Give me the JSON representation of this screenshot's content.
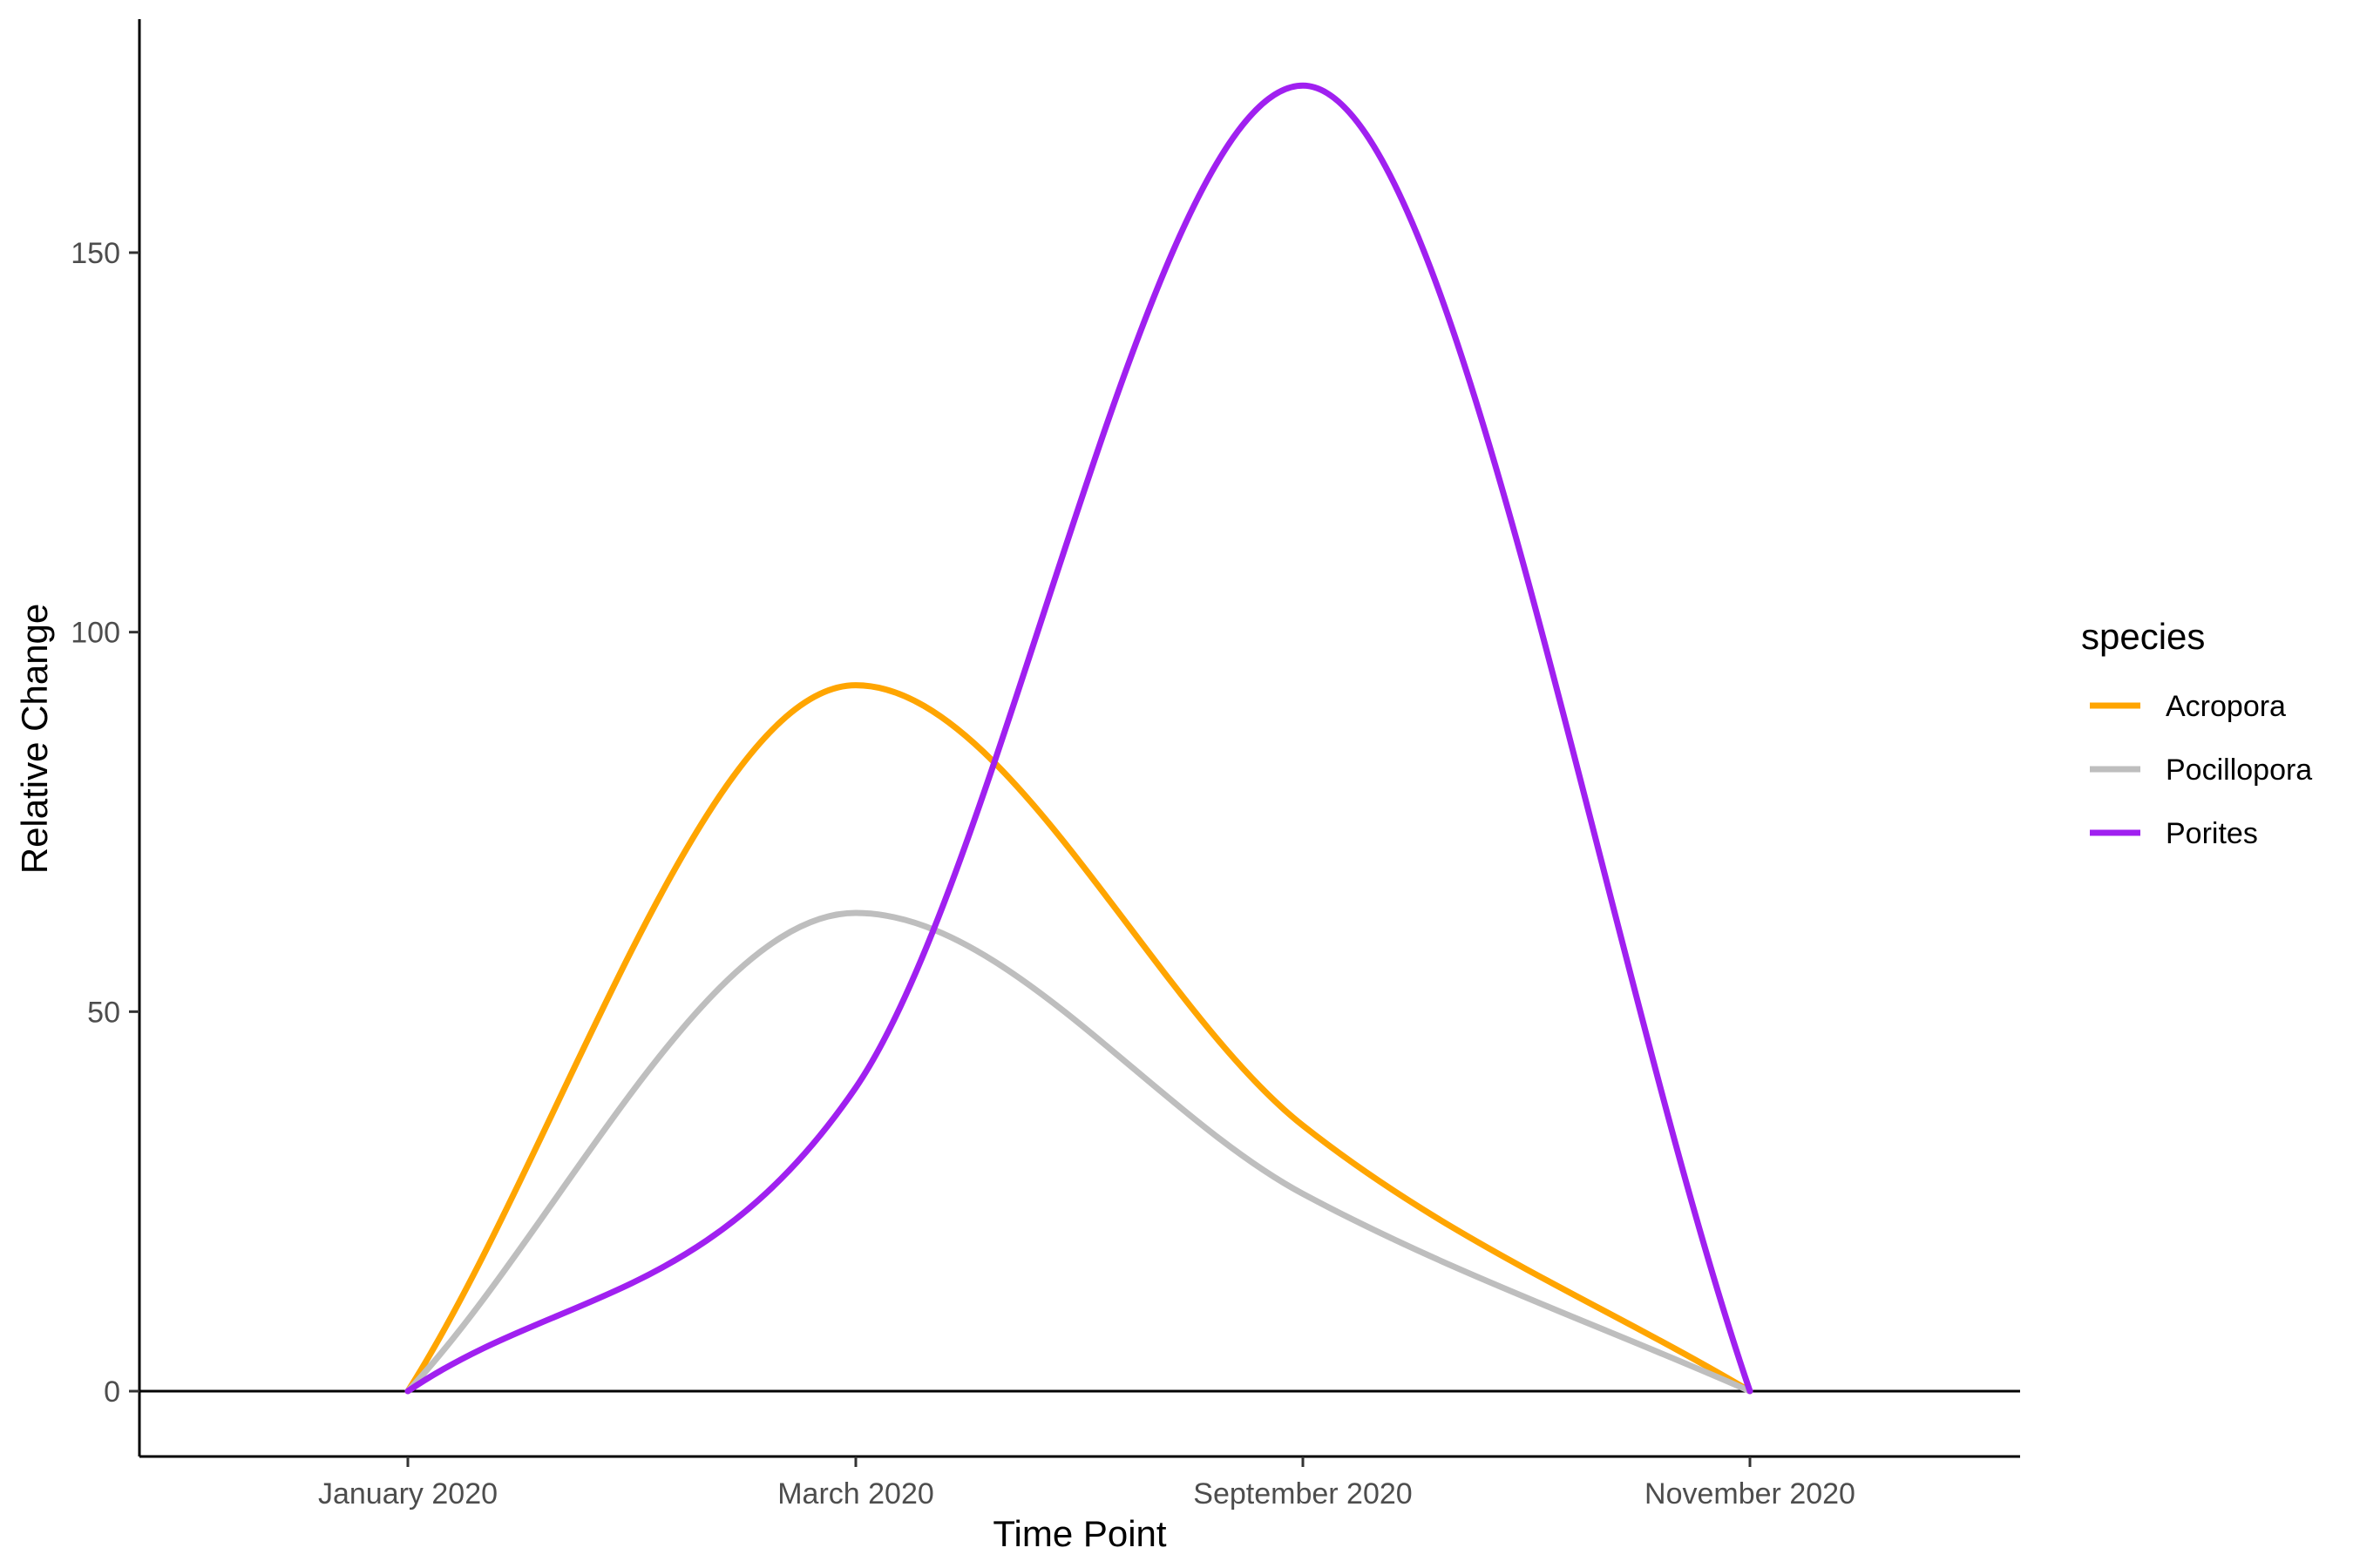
{
  "chart_data": {
    "type": "line",
    "title": "",
    "xlabel": "Time Point",
    "ylabel": "Relative Change",
    "categories": [
      "January 2020",
      "March 2020",
      "September 2020",
      "November 2020"
    ],
    "y_ticks": [
      0,
      50,
      100,
      150
    ],
    "ylim": [
      -9,
      180
    ],
    "grid": false,
    "reference_line_y": 0,
    "legend": {
      "title": "species",
      "position": "right"
    },
    "series": [
      {
        "name": "Acropora",
        "color": "#FFA500",
        "values": [
          0,
          93,
          35,
          0
        ]
      },
      {
        "name": "Pocillopora",
        "color": "#BEBEBE",
        "values": [
          0,
          63,
          26,
          0
        ]
      },
      {
        "name": "Porites",
        "color": "#A020F0",
        "values": [
          0,
          40,
          172,
          0
        ]
      }
    ]
  }
}
